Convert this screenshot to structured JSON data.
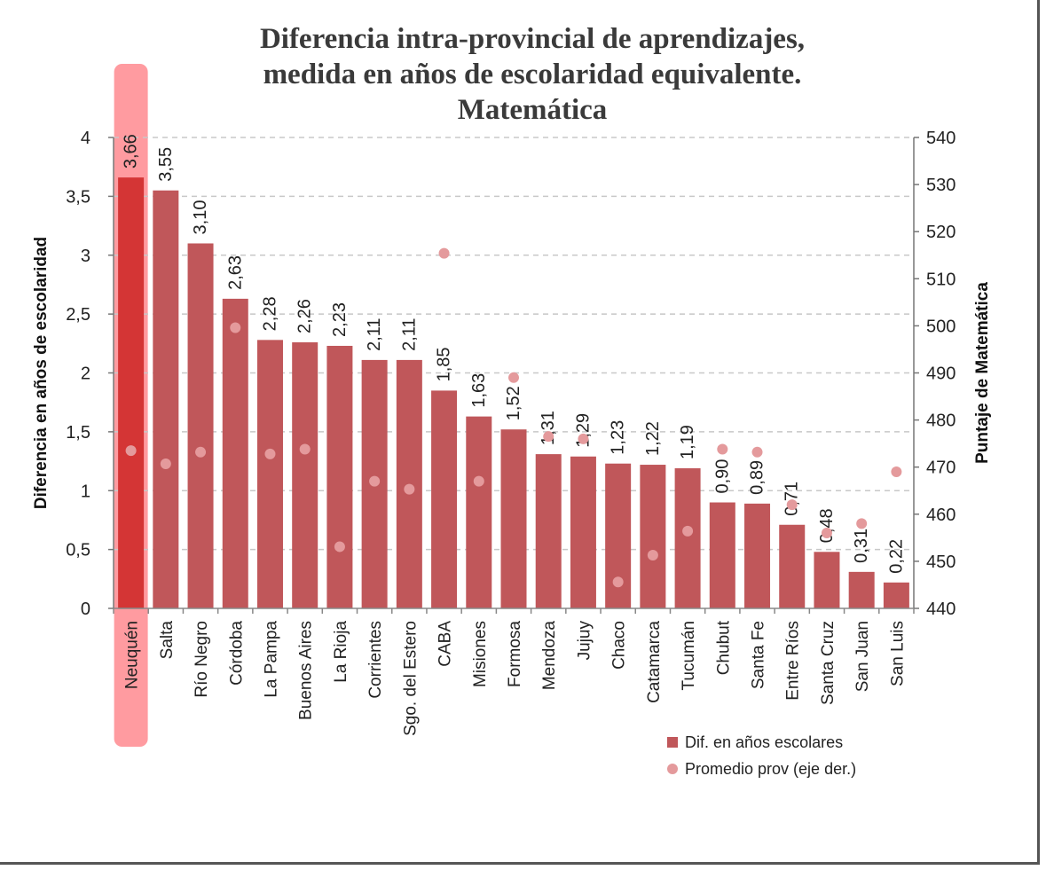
{
  "chart_data": {
    "type": "bar",
    "title": [
      "Diferencia intra-provincial de aprendizajes,",
      "medida en años de escolaridad equivalente.",
      "Matemática"
    ],
    "ylabel": "Diferencia en años de escolaridad",
    "y2label": "Puntaje de Matemática",
    "ylim": [
      0,
      4
    ],
    "y2lim": [
      440,
      540
    ],
    "yticks": [
      "0",
      "0,5",
      "1",
      "1,5",
      "2",
      "2,5",
      "3",
      "3,5",
      "4"
    ],
    "y2ticks": [
      "440",
      "450",
      "460",
      "470",
      "480",
      "490",
      "500",
      "510",
      "520",
      "530",
      "540"
    ],
    "categories": [
      "Neuquén",
      "Salta",
      "Río Negro",
      "Córdoba",
      "La Pampa",
      "Buenos Aires",
      "La Rioja",
      "Corrientes",
      "Sgo. del Estero",
      "CABA",
      "Misiones",
      "Formosa",
      "Mendoza",
      "Jujuy",
      "Chaco",
      "Catamarca",
      "Tucumán",
      "Chubut",
      "Santa Fe",
      "Entre Ríos",
      "Santa Cruz",
      "San Juan",
      "San Luis"
    ],
    "series": [
      {
        "name": "Dif. en años escolares",
        "kind": "bar",
        "axis": "left",
        "values": [
          3.66,
          3.55,
          3.1,
          2.63,
          2.28,
          2.26,
          2.23,
          2.11,
          2.11,
          1.85,
          1.63,
          1.52,
          1.31,
          1.29,
          1.23,
          1.22,
          1.19,
          0.9,
          0.89,
          0.71,
          0.48,
          0.31,
          0.22
        ],
        "labels": [
          "3,66",
          "3,55",
          "3,10",
          "2,63",
          "2,28",
          "2,26",
          "2,23",
          "2,11",
          "2,11",
          "1,85",
          "1,63",
          "1,52",
          "1,31",
          "1,29",
          "1,23",
          "1,22",
          "1,19",
          "0,90",
          "0,89",
          "0,71",
          "0,48",
          "0,31",
          "0,22"
        ]
      },
      {
        "name": "Promedio prov (eje der.)",
        "kind": "scatter",
        "axis": "right",
        "values": [
          473.5,
          470.7,
          473.2,
          499.6,
          472.8,
          473.8,
          453.1,
          467.0,
          465.3,
          515.4,
          467.0,
          489.0,
          476.5,
          476.0,
          445.6,
          451.3,
          456.4,
          473.8,
          473.2,
          462.0,
          456.0,
          458.0,
          469.0
        ]
      }
    ],
    "highlight": "Neuquén",
    "grid": true,
    "legend_position": "bottom-right",
    "colors": {
      "bar": "#c0575a",
      "highlight_bar": "#d43535",
      "highlight_band": "#ff8a8f",
      "dot": "#e49a9c",
      "grid": "#c8c8c8"
    }
  }
}
